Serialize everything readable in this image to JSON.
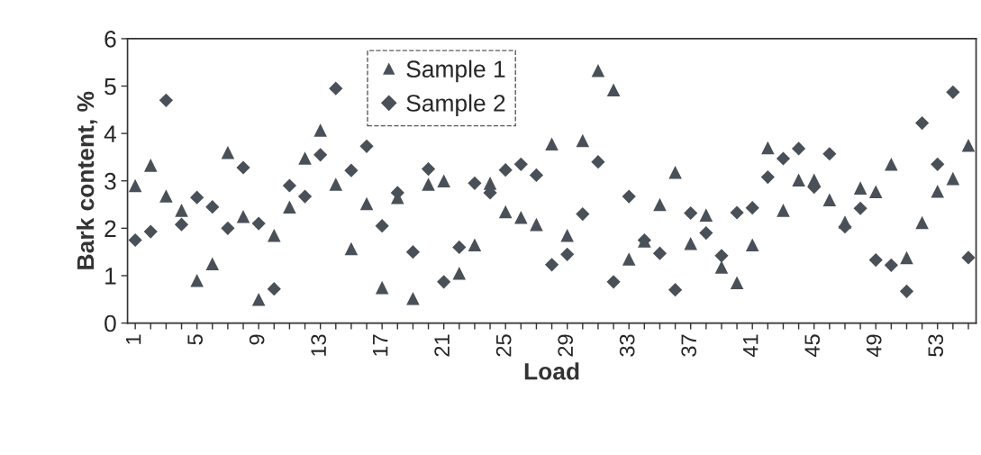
{
  "chart_data": {
    "type": "scatter",
    "xlabel": "Load",
    "ylabel": "Bark content, %",
    "categories": [
      "1",
      null,
      null,
      null,
      "5",
      null,
      null,
      null,
      "9",
      null,
      null,
      null,
      "13",
      null,
      null,
      null,
      "17",
      null,
      null,
      null,
      "21",
      null,
      null,
      null,
      "25",
      null,
      null,
      null,
      "29",
      null,
      null,
      null,
      "33",
      null,
      null,
      null,
      "37",
      null,
      null,
      null,
      "41",
      null,
      null,
      null,
      "45",
      null,
      null,
      null,
      "49",
      null,
      null,
      null,
      "53",
      null,
      null
    ],
    "ylim": [
      0,
      6
    ],
    "yticks": [
      0,
      1,
      2,
      3,
      4,
      5,
      6
    ],
    "legend": "top",
    "grid": false,
    "series": [
      {
        "name": "Sample 1",
        "color": "#4a5058",
        "marker": "triangle",
        "values": [
          2.9,
          3.33,
          2.68,
          2.38,
          0.9,
          1.25,
          3.6,
          2.25,
          0.5,
          1.85,
          2.45,
          3.48,
          4.07,
          2.93,
          1.57,
          2.52,
          0.75,
          2.65,
          0.52,
          2.93,
          3.0,
          1.05,
          1.65,
          2.95,
          2.35,
          2.23,
          2.08,
          3.78,
          1.85,
          3.85,
          5.33,
          4.92,
          1.35,
          1.73,
          2.5,
          3.18,
          1.68,
          2.28,
          1.18,
          0.85,
          1.65,
          3.7,
          2.38,
          3.02,
          3.02,
          2.6,
          2.13,
          2.85,
          2.77,
          3.35,
          1.38,
          2.12,
          2.78,
          3.05,
          3.75
        ]
      },
      {
        "name": "Sample 2",
        "color": "#4a5058",
        "marker": "diamond",
        "values": [
          1.75,
          1.93,
          4.7,
          2.08,
          2.65,
          2.45,
          2.0,
          3.28,
          2.1,
          0.72,
          2.9,
          2.67,
          3.55,
          4.95,
          3.22,
          3.73,
          2.05,
          2.75,
          1.5,
          3.25,
          0.87,
          1.6,
          2.95,
          2.75,
          3.23,
          3.35,
          3.12,
          1.23,
          1.45,
          2.3,
          3.4,
          0.87,
          2.67,
          1.75,
          1.47,
          0.7,
          2.32,
          1.9,
          1.42,
          2.33,
          2.43,
          3.08,
          3.47,
          3.68,
          2.87,
          3.57,
          2.03,
          2.42,
          1.33,
          1.22,
          0.67,
          4.22,
          3.35,
          4.87,
          1.38
        ]
      }
    ]
  }
}
